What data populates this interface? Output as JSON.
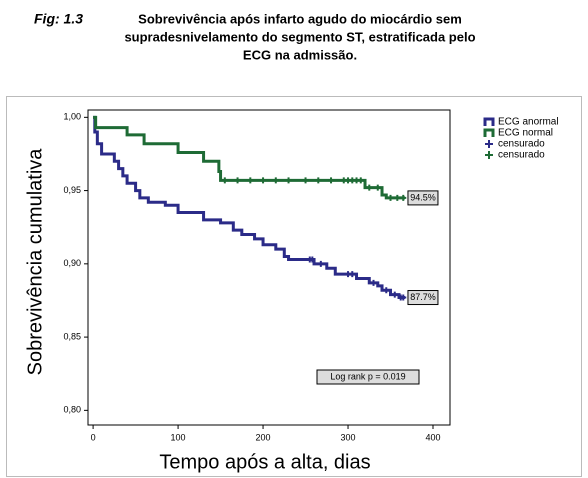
{
  "chart_data": {
    "type": "line",
    "figure_label": "Fig: 1.3",
    "title": [
      "Sobrevivência após infarto agudo do miocárdio sem",
      "supradesnivelamento do segmento ST, estratificada pelo",
      "ECG na admissão."
    ],
    "xlabel": "Tempo após a alta, dias",
    "ylabel": "Sobrevivência cumulativa",
    "xlim": [
      -6,
      420
    ],
    "ylim": [
      0.79,
      1.005
    ],
    "xticks": [
      0,
      100,
      200,
      300,
      400
    ],
    "yticks": [
      {
        "value": 0.8,
        "label": "0,80"
      },
      {
        "value": 0.85,
        "label": "0,85"
      },
      {
        "value": 0.9,
        "label": "0,90"
      },
      {
        "value": 0.95,
        "label": "0,95"
      },
      {
        "value": 1.0,
        "label": "1,00"
      }
    ],
    "series": [
      {
        "name": "ECG anormal",
        "color": "#2b2b88",
        "style": "line",
        "x": [
          0,
          2,
          2,
          5,
          5,
          10,
          10,
          25,
          25,
          30,
          30,
          35,
          35,
          40,
          40,
          50,
          50,
          55,
          55,
          65,
          65,
          85,
          85,
          100,
          100,
          130,
          130,
          150,
          150,
          165,
          165,
          175,
          175,
          190,
          190,
          200,
          200,
          215,
          215,
          225,
          225,
          230,
          230,
          260,
          260,
          275,
          275,
          285,
          285,
          310,
          310,
          325,
          325,
          335,
          335,
          340,
          340,
          350,
          350,
          360,
          360,
          367
        ],
        "values": [
          1.0,
          1.0,
          0.99,
          0.99,
          0.982,
          0.982,
          0.975,
          0.975,
          0.97,
          0.97,
          0.965,
          0.965,
          0.96,
          0.96,
          0.955,
          0.955,
          0.95,
          0.95,
          0.945,
          0.945,
          0.942,
          0.942,
          0.94,
          0.94,
          0.935,
          0.935,
          0.93,
          0.93,
          0.928,
          0.928,
          0.923,
          0.923,
          0.92,
          0.92,
          0.917,
          0.917,
          0.913,
          0.913,
          0.91,
          0.91,
          0.905,
          0.905,
          0.903,
          0.903,
          0.9,
          0.9,
          0.897,
          0.897,
          0.893,
          0.893,
          0.89,
          0.89,
          0.887,
          0.887,
          0.885,
          0.885,
          0.882,
          0.882,
          0.879,
          0.879,
          0.877,
          0.877
        ]
      },
      {
        "name": "ECG normal",
        "color": "#1e6b35",
        "style": "line",
        "x": [
          0,
          3,
          3,
          40,
          40,
          60,
          60,
          100,
          100,
          130,
          130,
          148,
          148,
          150,
          150,
          320,
          320,
          340,
          340,
          345,
          345,
          367
        ],
        "values": [
          1.0,
          1.0,
          0.993,
          0.993,
          0.988,
          0.988,
          0.982,
          0.982,
          0.976,
          0.976,
          0.97,
          0.97,
          0.963,
          0.963,
          0.957,
          0.957,
          0.952,
          0.952,
          0.947,
          0.947,
          0.945,
          0.945
        ]
      },
      {
        "name": "censurado",
        "color": "#2b2b88",
        "style": "marker",
        "x": [
          255,
          258,
          268,
          300,
          305,
          330,
          345,
          355,
          362,
          365
        ],
        "values": [
          0.903,
          0.903,
          0.9,
          0.893,
          0.893,
          0.887,
          0.882,
          0.879,
          0.877,
          0.877
        ]
      },
      {
        "name": "censurado",
        "color": "#1e6b35",
        "style": "marker",
        "x": [
          155,
          170,
          185,
          200,
          215,
          230,
          250,
          265,
          280,
          295,
          300,
          305,
          310,
          315,
          325,
          335,
          350,
          358,
          365
        ],
        "values": [
          0.957,
          0.957,
          0.957,
          0.957,
          0.957,
          0.957,
          0.957,
          0.957,
          0.957,
          0.957,
          0.957,
          0.957,
          0.957,
          0.957,
          0.952,
          0.952,
          0.945,
          0.945,
          0.945
        ]
      }
    ],
    "end_labels": [
      "87.7%",
      "94.5%"
    ],
    "test_label": "Log rank p = 0.019"
  }
}
